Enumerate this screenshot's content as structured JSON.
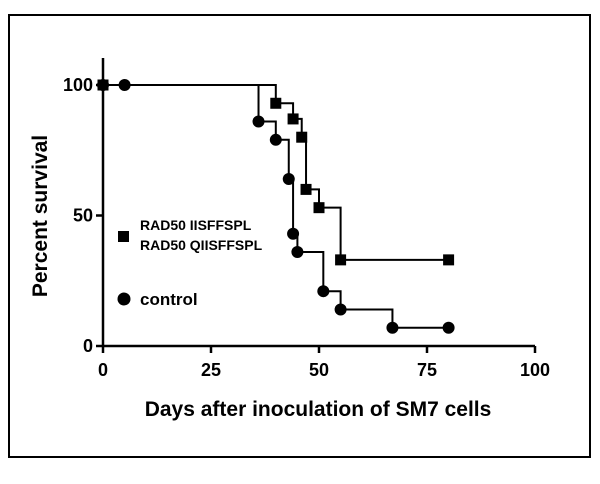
{
  "chart_data": {
    "type": "line",
    "title": "",
    "xlabel": "Days after inoculation of SM7 cells",
    "ylabel": "Percent survival",
    "xlim": [
      0,
      100
    ],
    "ylim": [
      0,
      100
    ],
    "x_ticks": [
      0,
      25,
      50,
      75,
      100
    ],
    "y_ticks": [
      0,
      50,
      100
    ],
    "grid": false,
    "step": true,
    "series": [
      {
        "name": "RAD50 IISFFSPL RAD50 QIISFFSPL",
        "marker": "square",
        "color": "#000000",
        "points": [
          [
            0,
            100
          ],
          [
            40,
            93
          ],
          [
            44,
            87
          ],
          [
            46,
            80
          ],
          [
            47,
            60
          ],
          [
            50,
            53
          ],
          [
            55,
            33
          ],
          [
            80,
            33
          ]
        ]
      },
      {
        "name": "control",
        "marker": "circle",
        "color": "#000000",
        "points": [
          [
            0,
            100
          ],
          [
            5,
            100
          ],
          [
            36,
            86
          ],
          [
            40,
            79
          ],
          [
            43,
            64
          ],
          [
            44,
            43
          ],
          [
            45,
            36
          ],
          [
            51,
            21
          ],
          [
            55,
            14
          ],
          [
            67,
            7
          ],
          [
            80,
            7
          ]
        ]
      }
    ],
    "legend": {
      "placement": "left",
      "lines": [
        [
          "RAD50 IISFFSPL",
          "RAD50 QIISFFSPL"
        ],
        [
          "control"
        ]
      ]
    }
  }
}
